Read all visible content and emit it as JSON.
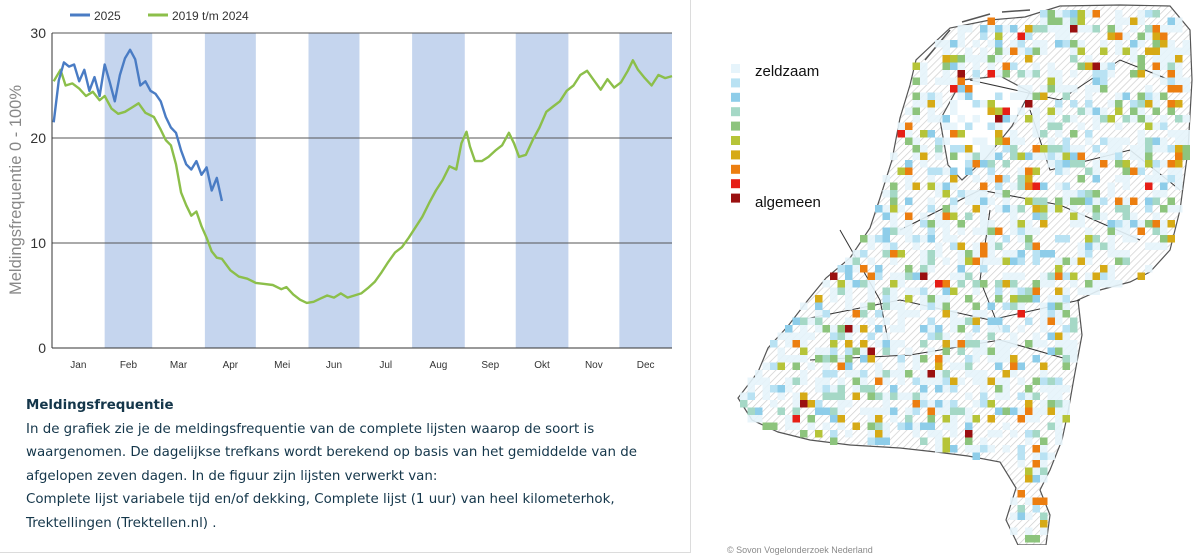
{
  "chart_data": {
    "type": "line",
    "title": "",
    "ylabel": "Meldingsfrequentie 0 - 100%",
    "ylim": [
      0,
      30
    ],
    "yticks": [
      0,
      10,
      20,
      30
    ],
    "grid": "horizontal",
    "legend_position": "top",
    "months": [
      "Jan",
      "Feb",
      "Mar",
      "Apr",
      "Mei",
      "Jun",
      "Jul",
      "Aug",
      "Sep",
      "Okt",
      "Nov",
      "Dec"
    ],
    "shaded_months": [
      "Feb",
      "Apr",
      "Jun",
      "Aug",
      "Okt",
      "Dec"
    ],
    "shade_color": "#c5d5ee",
    "series": [
      {
        "name": "2025",
        "color": "#4a7cc4",
        "points": [
          [
            1,
            21.5
          ],
          [
            4,
            25.5
          ],
          [
            7,
            27.2
          ],
          [
            10,
            26.8
          ],
          [
            13,
            27.0
          ],
          [
            16,
            25.4
          ],
          [
            19,
            26.5
          ],
          [
            22,
            24.5
          ],
          [
            25,
            25.8
          ],
          [
            28,
            24.0
          ],
          [
            31,
            27.0
          ],
          [
            34,
            25.3
          ],
          [
            37,
            23.5
          ],
          [
            40,
            26.0
          ],
          [
            43,
            27.6
          ],
          [
            46,
            28.4
          ],
          [
            49,
            27.5
          ],
          [
            52,
            25.0
          ],
          [
            55,
            25.4
          ],
          [
            58,
            24.5
          ],
          [
            61,
            24.2
          ],
          [
            64,
            23.5
          ],
          [
            67,
            22.0
          ],
          [
            70,
            21.0
          ],
          [
            73,
            20.5
          ],
          [
            76,
            18.8
          ],
          [
            79,
            17.5
          ],
          [
            82,
            17.0
          ],
          [
            85,
            17.8
          ],
          [
            88,
            16.5
          ],
          [
            91,
            17.2
          ],
          [
            94,
            15.0
          ],
          [
            97,
            16.2
          ],
          [
            100,
            14.0
          ]
        ]
      },
      {
        "name": "2019 t/m 2024",
        "color": "#8cbf4a",
        "points": [
          [
            1,
            25.4
          ],
          [
            5,
            26.5
          ],
          [
            8,
            25.0
          ],
          [
            12,
            25.2
          ],
          [
            16,
            24.7
          ],
          [
            20,
            24.0
          ],
          [
            24,
            24.4
          ],
          [
            28,
            23.6
          ],
          [
            31,
            24.0
          ],
          [
            35,
            22.8
          ],
          [
            39,
            22.3
          ],
          [
            43,
            22.5
          ],
          [
            47,
            22.9
          ],
          [
            51,
            23.3
          ],
          [
            55,
            22.4
          ],
          [
            60,
            22.0
          ],
          [
            64,
            20.8
          ],
          [
            67,
            19.8
          ],
          [
            70,
            19.3
          ],
          [
            73,
            17.5
          ],
          [
            76,
            14.8
          ],
          [
            79,
            13.6
          ],
          [
            82,
            12.6
          ],
          [
            85,
            13.0
          ],
          [
            88,
            11.6
          ],
          [
            91,
            10.5
          ],
          [
            94,
            9.2
          ],
          [
            97,
            8.6
          ],
          [
            100,
            8.5
          ],
          [
            105,
            7.4
          ],
          [
            110,
            6.8
          ],
          [
            115,
            6.6
          ],
          [
            120,
            6.2
          ],
          [
            125,
            6.1
          ],
          [
            130,
            6.0
          ],
          [
            135,
            5.6
          ],
          [
            138,
            5.8
          ],
          [
            142,
            5.1
          ],
          [
            146,
            4.6
          ],
          [
            150,
            4.3
          ],
          [
            154,
            4.4
          ],
          [
            158,
            4.7
          ],
          [
            162,
            5.0
          ],
          [
            166,
            4.8
          ],
          [
            170,
            5.2
          ],
          [
            174,
            4.8
          ],
          [
            178,
            5.0
          ],
          [
            182,
            5.2
          ],
          [
            186,
            5.7
          ],
          [
            190,
            6.3
          ],
          [
            194,
            7.2
          ],
          [
            198,
            8.2
          ],
          [
            202,
            9.1
          ],
          [
            206,
            9.6
          ],
          [
            210,
            10.5
          ],
          [
            214,
            11.5
          ],
          [
            218,
            12.5
          ],
          [
            222,
            13.8
          ],
          [
            226,
            15.0
          ],
          [
            230,
            16.0
          ],
          [
            234,
            17.3
          ],
          [
            238,
            17.0
          ],
          [
            241,
            19.5
          ],
          [
            244,
            20.6
          ],
          [
            246,
            19.2
          ],
          [
            249,
            17.8
          ],
          [
            253,
            17.8
          ],
          [
            257,
            18.2
          ],
          [
            261,
            18.8
          ],
          [
            265,
            19.3
          ],
          [
            269,
            20.5
          ],
          [
            272,
            19.5
          ],
          [
            275,
            18.2
          ],
          [
            279,
            18.4
          ],
          [
            283,
            19.8
          ],
          [
            287,
            21.0
          ],
          [
            291,
            22.5
          ],
          [
            295,
            23.0
          ],
          [
            299,
            23.5
          ],
          [
            303,
            24.5
          ],
          [
            307,
            25.0
          ],
          [
            311,
            26.0
          ],
          [
            315,
            26.4
          ],
          [
            319,
            25.5
          ],
          [
            323,
            24.6
          ],
          [
            327,
            25.6
          ],
          [
            331,
            24.8
          ],
          [
            335,
            25.3
          ],
          [
            339,
            26.4
          ],
          [
            342,
            27.4
          ],
          [
            345,
            26.5
          ],
          [
            349,
            25.7
          ],
          [
            353,
            25.0
          ],
          [
            357,
            26.0
          ],
          [
            361,
            25.7
          ],
          [
            365,
            25.9
          ]
        ]
      }
    ]
  },
  "caption": {
    "title": "Meldingsfrequentie",
    "lines": [
      "In de grafiek zie je de meldingsfrequentie van de complete lijsten waarop de soort is",
      "waargenomen. De dagelijkse trefkans wordt berekend op basis van het gemiddelde van de",
      "afgelopen zeven dagen. In de figuur zijn lijsten verwerkt van:",
      "Complete lijst variabele tijd en/of dekking, Complete lijst (1 uur) van heel kilometerhok,",
      "Trektellingen (Trektellen.nl) ."
    ]
  },
  "map": {
    "legend_top": "zeldzaam",
    "legend_bottom": "algemeen",
    "scale_colors": [
      "#e6f4fb",
      "#b9e2f3",
      "#8ecde9",
      "#a5d8c6",
      "#8dc47d",
      "#b6c438",
      "#d6aa16",
      "#ec7e10",
      "#e61e16",
      "#9a1010"
    ],
    "credit": "© Sovon Vogelonderzoek Nederland"
  }
}
